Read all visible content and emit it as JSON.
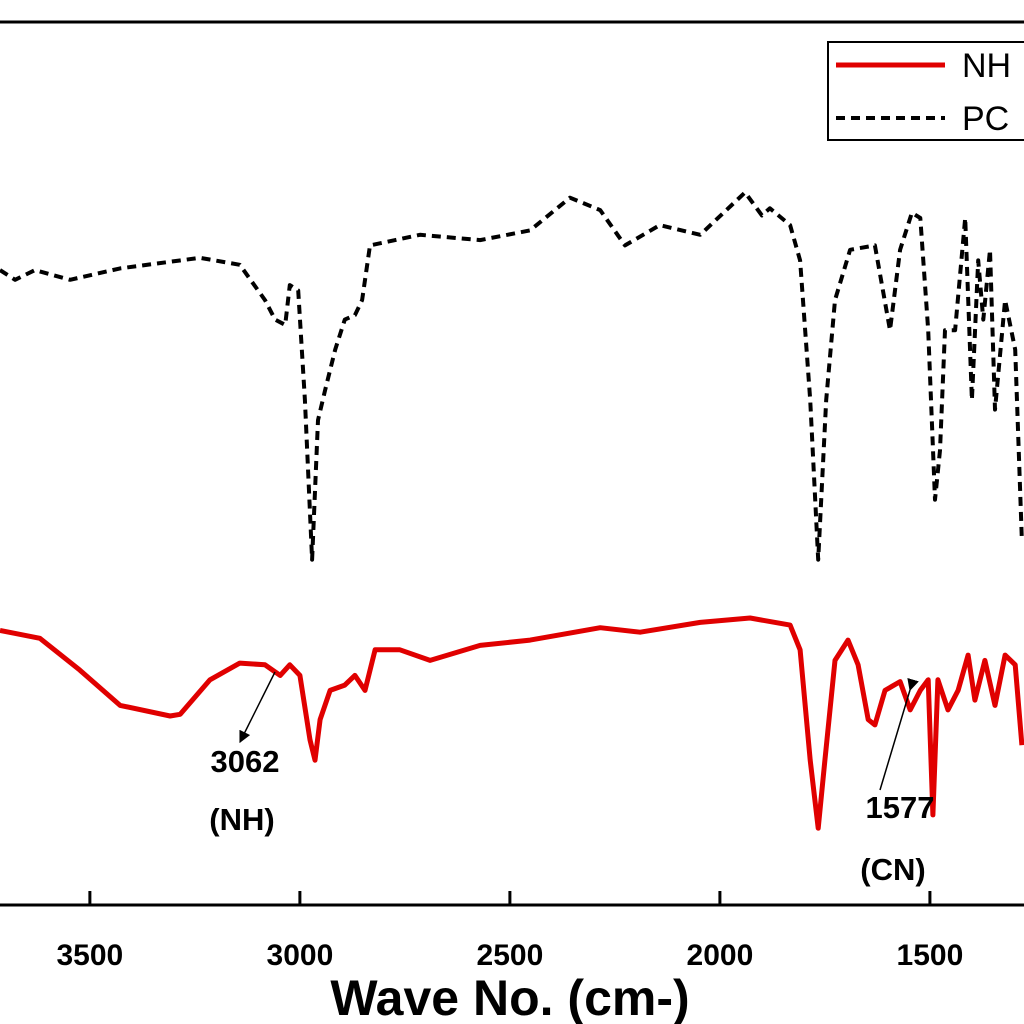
{
  "chart_data": {
    "type": "line",
    "x_label": "Wave No. (cm-)",
    "xlim": [
      3714,
      1276
    ],
    "xticks": [
      3500,
      3000,
      2500,
      2000,
      1500
    ],
    "ylim": [
      0,
      100
    ],
    "legend": "top-right",
    "annotations": [
      "3062",
      "(NH)",
      "1577",
      "(CN)"
    ],
    "series": [
      {
        "name": "NH",
        "color": "#e00000",
        "style": "solid",
        "x": [
          3714,
          3619,
          3524,
          3428,
          3309,
          3285,
          3214,
          3143,
          3083,
          3047,
          3024,
          3000,
          2976,
          2964,
          2952,
          2928,
          2893,
          2869,
          2845,
          2821,
          2762,
          2690,
          2571,
          2452,
          2285,
          2190,
          2047,
          1928,
          1833,
          1809,
          1785,
          1766,
          1750,
          1726,
          1695,
          1671,
          1647,
          1631,
          1607,
          1571,
          1547,
          1523,
          1504,
          1493,
          1481,
          1457,
          1433,
          1409,
          1393,
          1369,
          1345,
          1321,
          1297,
          1281
        ],
        "values": [
          31.1,
          30.2,
          26.6,
          22.6,
          21.4,
          21.6,
          25.5,
          27.4,
          27.2,
          26.0,
          27.2,
          26.0,
          18.7,
          16.4,
          21.0,
          24.3,
          24.9,
          26.0,
          24.3,
          28.9,
          28.9,
          27.7,
          29.4,
          30.0,
          31.4,
          30.9,
          32.0,
          32.5,
          31.7,
          28.9,
          16.4,
          8.7,
          16.4,
          27.7,
          30.0,
          27.2,
          21.0,
          20.4,
          24.3,
          25.3,
          22.1,
          24.3,
          25.5,
          10.2,
          25.5,
          22.1,
          24.3,
          28.3,
          23.2,
          27.7,
          22.6,
          28.3,
          27.2,
          18.1
        ]
      },
      {
        "name": "PC",
        "color": "#000000",
        "style": "dashed",
        "x": [
          3714,
          3678,
          3631,
          3547,
          3428,
          3238,
          3143,
          3083,
          3059,
          3035,
          3024,
          3004,
          2988,
          2971,
          2957,
          2940,
          2916,
          2893,
          2869,
          2852,
          2833,
          2714,
          2571,
          2452,
          2357,
          2285,
          2226,
          2143,
          2047,
          1940,
          1900,
          1881,
          1833,
          1809,
          1785,
          1766,
          1747,
          1726,
          1690,
          1631,
          1595,
          1571,
          1543,
          1523,
          1504,
          1488,
          1476,
          1464,
          1440,
          1416,
          1400,
          1385,
          1373,
          1357,
          1345,
          1321,
          1297,
          1281
        ],
        "values": [
          71.9,
          70.8,
          71.9,
          70.8,
          72.1,
          73.3,
          72.5,
          68.5,
          66.3,
          65.7,
          70.2,
          69.6,
          57.2,
          39.1,
          54.9,
          58.3,
          62.9,
          66.3,
          66.8,
          68.5,
          74.7,
          75.9,
          75.3,
          76.4,
          80.1,
          78.7,
          74.7,
          77.0,
          75.9,
          80.7,
          78.1,
          78.9,
          77.0,
          73.0,
          57.2,
          39.1,
          57.2,
          68.5,
          74.2,
          74.7,
          65.1,
          74.2,
          78.4,
          77.8,
          65.1,
          45.9,
          51.5,
          65.1,
          65.1,
          77.8,
          57.2,
          73.0,
          66.3,
          74.2,
          56.1,
          68.5,
          62.9,
          41.2
        ]
      }
    ]
  }
}
